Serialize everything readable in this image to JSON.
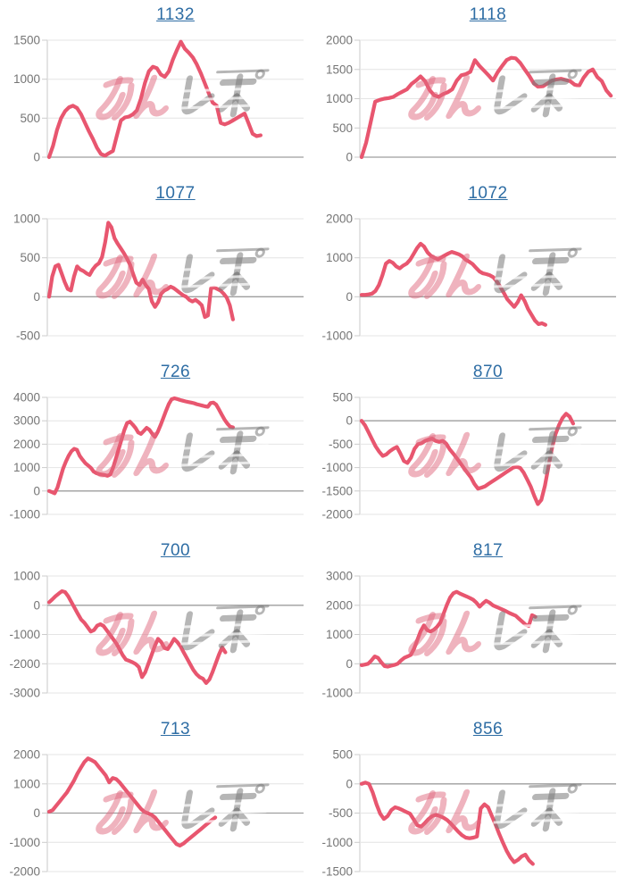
{
  "page": {
    "background_color": "#ffffff",
    "description": "Grid of 10 machine slump graphs, each titled with a machine number link"
  },
  "style": {
    "line_color": "#e8566f",
    "grid_color": "#e4e4e4",
    "zero_line_color": "#9e9e9e",
    "axis_line_color": "#c9c9c9",
    "tick_color": "#cccccc",
    "tick_label_color": "#757575",
    "title_link_color": "#2e6da4"
  },
  "watermark": {
    "text": "みんレポ",
    "pink_text": "みん",
    "gray_text": "レポ",
    "pink_color": "rgba(223,103,125,0.5)",
    "gray_color": "rgba(122,122,122,0.55)"
  },
  "chart_data": [
    {
      "type": "line",
      "title": "1132",
      "xlabel": "",
      "ylabel": "",
      "ylim": [
        0,
        1500
      ],
      "yticks": [
        1500,
        1000,
        500,
        0
      ],
      "grid": true,
      "span": 0.84,
      "values": [
        0,
        150,
        350,
        500,
        590,
        640,
        660,
        630,
        550,
        440,
        330,
        230,
        120,
        40,
        20,
        50,
        80,
        280,
        470,
        510,
        520,
        550,
        600,
        750,
        950,
        1100,
        1160,
        1140,
        1060,
        1030,
        1100,
        1250,
        1370,
        1480,
        1390,
        1340,
        1280,
        1190,
        1080,
        950,
        820,
        700,
        660,
        440,
        420,
        440,
        470,
        500,
        530,
        560,
        430,
        300,
        270,
        280
      ]
    },
    {
      "type": "line",
      "title": "1118",
      "xlabel": "",
      "ylabel": "",
      "ylim": [
        0,
        2000
      ],
      "yticks": [
        2000,
        1500,
        1000,
        500,
        0
      ],
      "grid": true,
      "span": 0.99,
      "values": [
        0,
        250,
        600,
        950,
        980,
        1000,
        1010,
        1030,
        1080,
        1120,
        1160,
        1250,
        1310,
        1380,
        1300,
        1150,
        1060,
        1030,
        1080,
        1110,
        1160,
        1310,
        1400,
        1420,
        1460,
        1660,
        1560,
        1480,
        1400,
        1310,
        1450,
        1560,
        1660,
        1700,
        1690,
        1610,
        1500,
        1390,
        1260,
        1200,
        1210,
        1260,
        1310,
        1330,
        1340,
        1320,
        1300,
        1240,
        1220,
        1360,
        1460,
        1500,
        1370,
        1300,
        1140,
        1050
      ]
    },
    {
      "type": "line",
      "title": "1077",
      "xlabel": "",
      "ylabel": "",
      "ylim": [
        -500,
        1000
      ],
      "yticks": [
        1000,
        500,
        0,
        -500
      ],
      "grid": true,
      "span": 0.73,
      "values": [
        0,
        260,
        390,
        410,
        300,
        190,
        100,
        80,
        260,
        390,
        350,
        330,
        300,
        280,
        350,
        400,
        430,
        510,
        700,
        950,
        890,
        750,
        680,
        620,
        560,
        490,
        410,
        290,
        180,
        150,
        220,
        150,
        100,
        -60,
        -130,
        -70,
        40,
        80,
        100,
        130,
        110,
        80,
        50,
        20,
        0,
        -40,
        -60,
        -40,
        -70,
        -110,
        -260,
        -240,
        110,
        120,
        100,
        80,
        40,
        -10,
        -110,
        -290
      ]
    },
    {
      "type": "line",
      "title": "1072",
      "xlabel": "",
      "ylabel": "",
      "ylim": [
        -1000,
        2000
      ],
      "yticks": [
        2000,
        1000,
        0,
        -1000
      ],
      "grid": true,
      "span": 0.73,
      "values": [
        50,
        50,
        60,
        80,
        150,
        300,
        550,
        850,
        920,
        870,
        780,
        730,
        800,
        850,
        950,
        1100,
        1250,
        1360,
        1290,
        1140,
        1050,
        1000,
        960,
        1010,
        1060,
        1110,
        1150,
        1120,
        1090,
        1040,
        950,
        900,
        840,
        740,
        650,
        600,
        580,
        550,
        500,
        390,
        250,
        100,
        -60,
        -160,
        -260,
        -140,
        40,
        -110,
        -310,
        -460,
        -610,
        -700,
        -680,
        -720
      ]
    },
    {
      "type": "line",
      "title": "726",
      "xlabel": "",
      "ylabel": "",
      "ylim": [
        -1000,
        4000
      ],
      "yticks": [
        4000,
        3000,
        2000,
        1000,
        0,
        -1000
      ],
      "grid": true,
      "span": 0.73,
      "values": [
        0,
        -50,
        -100,
        150,
        550,
        950,
        1250,
        1500,
        1700,
        1800,
        1760,
        1500,
        1340,
        1190,
        1090,
        990,
        830,
        760,
        720,
        700,
        680,
        650,
        710,
        1000,
        1400,
        1800,
        2200,
        2600,
        2900,
        2960,
        2840,
        2700,
        2500,
        2440,
        2560,
        2700,
        2620,
        2450,
        2310,
        2520,
        2810,
        3120,
        3430,
        3720,
        3920,
        3960,
        3930,
        3890,
        3860,
        3830,
        3800,
        3780,
        3750,
        3710,
        3680,
        3650,
        3620,
        3600,
        3760,
        3780,
        3690,
        3480,
        3260,
        3050,
        2880,
        2750,
        2720
      ]
    },
    {
      "type": "line",
      "title": "870",
      "xlabel": "",
      "ylabel": "",
      "ylim": [
        -2000,
        500
      ],
      "yticks": [
        500,
        0,
        -500,
        -1000,
        -1500,
        -2000
      ],
      "grid": true,
      "span": 0.84,
      "values": [
        0,
        -100,
        -250,
        -400,
        -550,
        -660,
        -750,
        -720,
        -650,
        -600,
        -560,
        -700,
        -860,
        -900,
        -790,
        -600,
        -500,
        -480,
        -430,
        -400,
        -380,
        -430,
        -450,
        -430,
        -490,
        -610,
        -700,
        -800,
        -900,
        -1010,
        -1110,
        -1210,
        -1350,
        -1450,
        -1430,
        -1400,
        -1350,
        -1300,
        -1250,
        -1200,
        -1150,
        -1100,
        -1050,
        -1000,
        -980,
        -1010,
        -1110,
        -1260,
        -1410,
        -1610,
        -1780,
        -1690,
        -1390,
        -990,
        -590,
        -290,
        -90,
        60,
        150,
        90,
        -60
      ]
    },
    {
      "type": "line",
      "title": "700",
      "xlabel": "",
      "ylabel": "",
      "ylim": [
        -3000,
        1000
      ],
      "yticks": [
        1000,
        0,
        -1000,
        -2000,
        -3000
      ],
      "grid": true,
      "span": 0.7,
      "values": [
        100,
        200,
        310,
        400,
        480,
        450,
        300,
        100,
        -100,
        -300,
        -490,
        -600,
        -750,
        -900,
        -850,
        -700,
        -650,
        -710,
        -860,
        -1010,
        -1160,
        -1310,
        -1510,
        -1710,
        -1860,
        -1900,
        -1950,
        -2010,
        -2110,
        -2460,
        -2290,
        -1990,
        -1690,
        -1390,
        -1150,
        -1260,
        -1460,
        -1500,
        -1340,
        -1150,
        -1260,
        -1410,
        -1610,
        -1810,
        -2010,
        -2210,
        -2360,
        -2460,
        -2510,
        -2660,
        -2540,
        -2290,
        -1990,
        -1690,
        -1440,
        -1610
      ]
    },
    {
      "type": "line",
      "title": "817",
      "xlabel": "",
      "ylabel": "",
      "ylim": [
        -1000,
        3000
      ],
      "yticks": [
        3000,
        2000,
        1000,
        0,
        -1000
      ],
      "grid": true,
      "span": 0.69,
      "values": [
        -50,
        -30,
        0,
        110,
        250,
        200,
        50,
        -80,
        -100,
        -70,
        -40,
        0,
        110,
        200,
        250,
        300,
        510,
        810,
        1110,
        1310,
        1150,
        1100,
        1160,
        1260,
        1410,
        1710,
        2010,
        2260,
        2410,
        2460,
        2400,
        2350,
        2300,
        2250,
        2190,
        2090,
        1950,
        2060,
        2150,
        2090,
        2000,
        1950,
        1900,
        1850,
        1800,
        1740,
        1690,
        1640,
        1540,
        1440,
        1340,
        1290,
        1660,
        1600
      ]
    },
    {
      "type": "line",
      "title": "713",
      "xlabel": "",
      "ylabel": "",
      "ylim": [
        -2000,
        2000
      ],
      "yticks": [
        2000,
        1000,
        0,
        -1000,
        -2000
      ],
      "grid": true,
      "span": 0.66,
      "values": [
        50,
        100,
        250,
        400,
        550,
        700,
        900,
        1100,
        1350,
        1550,
        1750,
        1870,
        1810,
        1740,
        1590,
        1440,
        1290,
        1050,
        1200,
        1160,
        1040,
        890,
        740,
        590,
        440,
        290,
        140,
        40,
        -10,
        -60,
        -160,
        -310,
        -460,
        -610,
        -760,
        -910,
        -1060,
        -1110,
        -1040,
        -940,
        -840,
        -740,
        -640,
        -540,
        -440,
        -340,
        -240,
        -150
      ]
    },
    {
      "type": "line",
      "title": "856",
      "xlabel": "",
      "ylabel": "",
      "ylim": [
        -1500,
        500
      ],
      "yticks": [
        500,
        0,
        -500,
        -1000,
        -1500
      ],
      "grid": true,
      "span": 0.68,
      "values": [
        0,
        20,
        0,
        -150,
        -350,
        -510,
        -600,
        -550,
        -450,
        -400,
        -420,
        -450,
        -480,
        -510,
        -610,
        -710,
        -730,
        -670,
        -600,
        -550,
        -530,
        -550,
        -580,
        -620,
        -680,
        -750,
        -820,
        -880,
        -920,
        -930,
        -920,
        -900,
        -420,
        -350,
        -400,
        -550,
        -700,
        -860,
        -1010,
        -1150,
        -1260,
        -1340,
        -1300,
        -1240,
        -1210,
        -1310,
        -1370
      ]
    }
  ]
}
